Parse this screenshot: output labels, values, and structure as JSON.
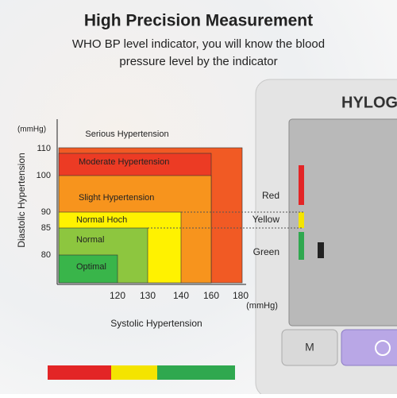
{
  "header": {
    "title": "High Precision Measurement",
    "subtitle_lines": [
      "WHO BP level indicator, you will know the blood",
      "pressure level by the indicator"
    ]
  },
  "diagram": {
    "y_unit": "(mmHg)",
    "x_unit": "(mmHg)",
    "y_axis_title": "Diastolic Hypertension",
    "x_axis_title": "Systolic Hypertension",
    "y_ticks": [
      "110",
      "100",
      "90",
      "85",
      "80"
    ],
    "x_ticks": [
      "120",
      "130",
      "140",
      "160",
      "180"
    ],
    "zones": [
      "Serious Hypertension",
      "Moderate Hypertension",
      "Slight Hypertension",
      "Normal Hoch",
      "Normal",
      "Optimal"
    ]
  },
  "indicator": {
    "labels": [
      "Red",
      "Yellow",
      "Green"
    ]
  },
  "device": {
    "brand": "HYLOG",
    "button": "M"
  }
}
